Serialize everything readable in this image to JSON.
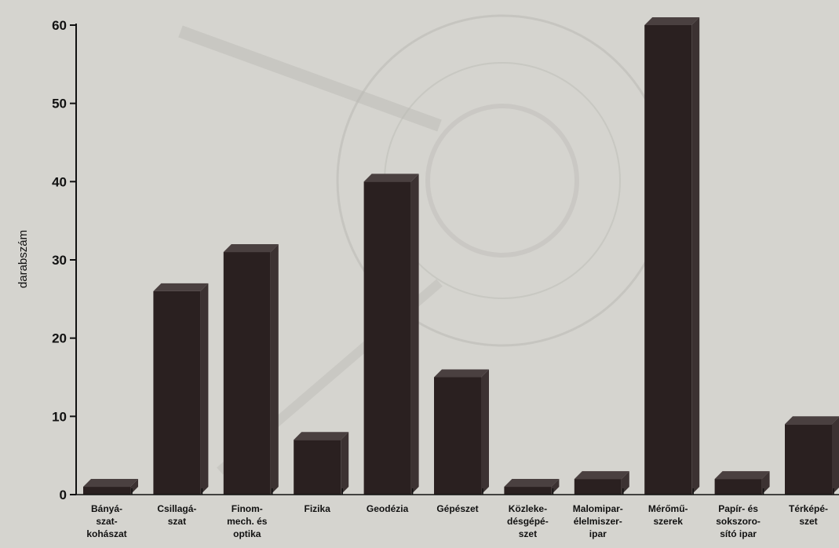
{
  "chart_data": {
    "type": "bar",
    "title": "",
    "xlabel": "",
    "ylabel": "darabszám",
    "ylim": [
      0,
      60
    ],
    "yticks": [
      "0",
      "10",
      "20",
      "30",
      "40",
      "50",
      "60"
    ],
    "grid": false,
    "legend": "none",
    "categories": [
      [
        "Bányá-",
        "szat-",
        "kohászat"
      ],
      [
        "Csillagá-",
        "szat"
      ],
      [
        "Finom-",
        "mech. és",
        "optika"
      ],
      [
        "Fizika"
      ],
      [
        "Geodézia"
      ],
      [
        "Gépészet"
      ],
      [
        "Közleke-",
        "désgépé-",
        "szet"
      ],
      [
        "Malomipar-",
        "élelmiszer-",
        "ipar"
      ],
      [
        "Mérőmű-",
        "szerek"
      ],
      [
        "Papír- és",
        "sokszoro-",
        "sító ipar"
      ],
      [
        "Térképé-",
        "szet"
      ]
    ],
    "values": [
      1,
      26,
      31,
      7,
      40,
      15,
      1,
      2,
      60,
      2,
      9
    ],
    "colors": {
      "background": "#d5d4cf",
      "bar_front": "#2a2020",
      "bar_side": "#3c3232",
      "bar_top": "#4a4040",
      "axis": "#111111",
      "text": "#111111",
      "watermark": "#bcbbb6"
    }
  }
}
